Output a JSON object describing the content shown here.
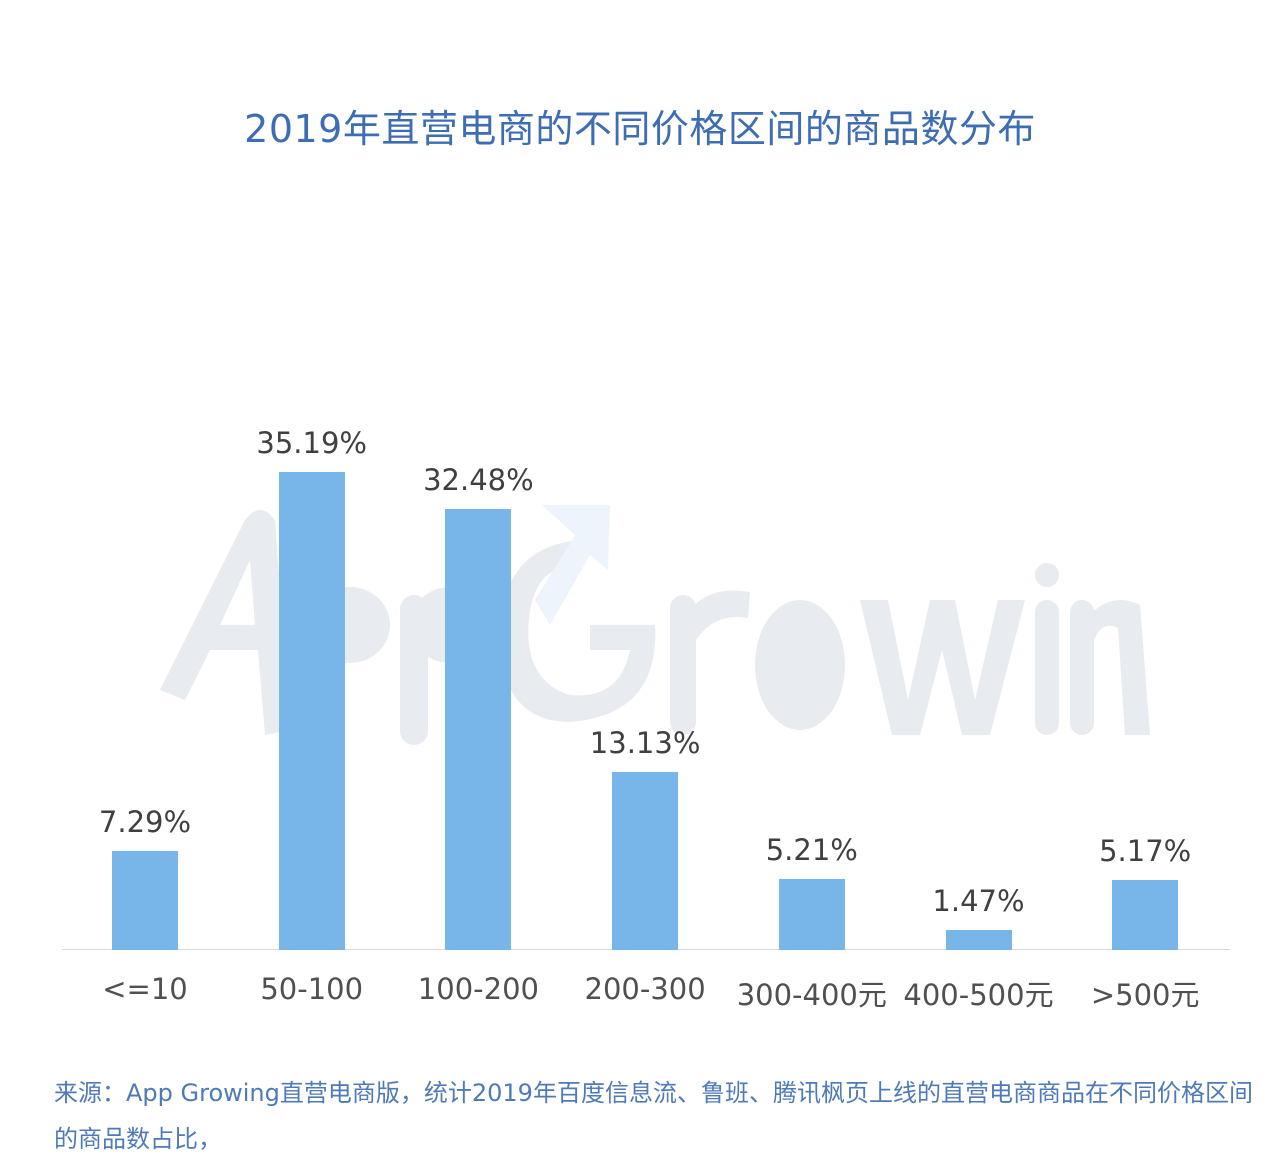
{
  "title": "2019年直营电商的不同价格区间的商品数分布",
  "watermark": "App Growing",
  "footnote": "来源：App Growing直营电商版，统计2019年百度信息流、鲁班、腾讯枫页上线的直营电商商品在不同价格区间的商品数占比，",
  "colors": {
    "bar": "#74b4e8",
    "title": "#3d6db3",
    "footnote": "#4f7ab8",
    "label": "#404040"
  },
  "chart_data": {
    "type": "bar",
    "title": "2019年直营电商的不同价格区间的商品数分布",
    "xlabel": "",
    "ylabel": "",
    "categories": [
      "<=10",
      "50-100",
      "100-200",
      "200-300",
      "300-400元",
      "400-500元",
      ">500元"
    ],
    "values": [
      7.29,
      35.19,
      32.48,
      13.13,
      5.21,
      1.47,
      5.17
    ],
    "value_labels": [
      "7.29%",
      "35.19%",
      "32.48%",
      "13.13%",
      "5.21%",
      "1.47%",
      "5.17%"
    ],
    "unit": "%",
    "ylim": [
      0,
      40
    ],
    "grid": false,
    "legend": null,
    "annotations": [
      "App Growing watermark"
    ]
  }
}
